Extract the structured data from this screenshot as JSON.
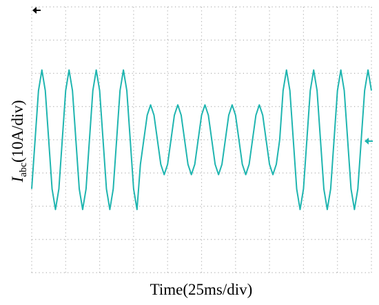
{
  "chart_data": {
    "type": "line",
    "xlabel": "Time(25ms/div)",
    "ylabel": {
      "symbol": "I",
      "subscript": "abc",
      "unit": "(10A/div)"
    },
    "x": [
      0,
      2.5,
      5,
      7.5,
      10,
      12.5,
      15,
      17.5,
      20,
      22.5,
      25,
      27.5,
      30,
      32.5,
      35,
      37.5,
      40,
      42.5,
      45,
      47.5,
      50,
      52.5,
      55,
      57.5,
      60,
      62.5,
      65,
      67.5,
      70,
      72.5,
      75,
      77.5,
      80,
      82.5,
      85,
      87.5,
      90,
      92.5,
      95,
      97.5,
      100,
      102.5,
      105,
      107.5,
      110,
      112.5,
      115,
      117.5,
      120,
      122.5,
      125,
      127.5,
      130,
      132.5,
      135,
      137.5,
      140,
      142.5,
      145,
      147.5,
      150,
      152.5,
      155,
      157.5,
      160,
      162.5,
      165,
      167.5,
      170,
      172.5,
      175,
      177.5,
      180,
      182.5,
      185,
      187.5,
      190,
      192.5,
      195,
      197.5,
      200,
      202.5,
      205,
      207.5,
      210,
      212.5,
      215,
      217.5,
      220,
      222.5,
      225,
      227.5,
      230,
      232.5,
      235,
      237.5,
      240,
      242.5,
      245,
      247.5,
      250
    ],
    "series": [
      {
        "color": "#1fb5b0",
        "values": [
          -14.8,
          0,
          14.8,
          21,
          14.8,
          0,
          -14.8,
          -21,
          -14.8,
          0,
          14.8,
          21,
          14.8,
          0,
          -14.8,
          -21,
          -14.8,
          0,
          14.8,
          21,
          14.8,
          0,
          -14.8,
          -21,
          -14.8,
          0,
          14.8,
          21,
          14.8,
          0,
          -14.8,
          -21,
          -7.4,
          0,
          7.4,
          10.5,
          7.4,
          0,
          -7.4,
          -10.5,
          -7.4,
          0,
          7.4,
          10.5,
          7.4,
          0,
          -7.4,
          -10.5,
          -7.4,
          0,
          7.4,
          10.5,
          7.4,
          0,
          -7.4,
          -10.5,
          -7.4,
          0,
          7.4,
          10.5,
          7.4,
          0,
          -7.4,
          -10.5,
          -7.4,
          0,
          7.4,
          10.5,
          7.4,
          0,
          -7.4,
          -10.5,
          -7.4,
          0,
          14.8,
          21,
          14.8,
          0,
          -14.8,
          -21,
          -14.8,
          0,
          14.8,
          21,
          14.8,
          0,
          -14.8,
          -21,
          -14.8,
          0,
          14.8,
          21,
          14.8,
          0,
          -14.8,
          -21,
          -14.8,
          0,
          14.8,
          21,
          14.8
        ]
      }
    ],
    "xlim": [
      0,
      250
    ],
    "ylim": [
      -40,
      40
    ],
    "xticks": [
      0,
      25,
      50,
      75,
      100,
      125,
      150,
      175,
      200,
      225,
      250
    ],
    "yticks": [
      -40,
      -30,
      -20,
      -10,
      0,
      10,
      20,
      30,
      40
    ],
    "grid": true
  }
}
